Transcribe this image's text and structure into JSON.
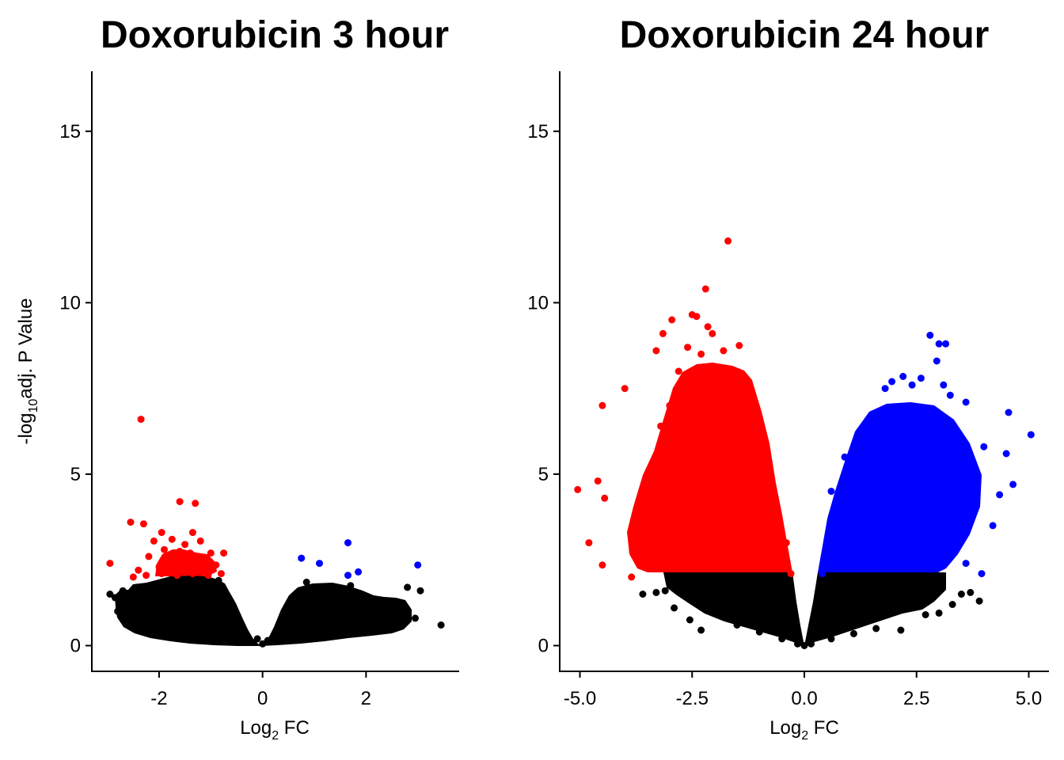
{
  "chart_data": [
    {
      "type": "scatter",
      "title": "Doxorubicin 3 hour",
      "xlabel": "Log2 FC",
      "xlabel_main": "Log",
      "xlabel_sub": "2",
      "xlabel_tail": " FC",
      "ylabel": "-log10adj. P Value",
      "ylabel_pre": "-log",
      "ylabel_sub": "10",
      "ylabel_tail": "adj. P Value",
      "xlim": [
        -3.3,
        3.8
      ],
      "ylim": [
        -0.75,
        16.75
      ],
      "x_ticks": [
        -2,
        0,
        2
      ],
      "x_tick_labels": [
        "-2",
        "0",
        "2"
      ],
      "y_ticks": [
        0,
        5,
        10,
        15
      ],
      "y_tick_labels": [
        "0",
        "5",
        "10",
        "15"
      ],
      "series": [
        {
          "color": "#ff0000",
          "points": [
            [
              -2.35,
              6.6
            ],
            [
              -1.6,
              4.2
            ],
            [
              -1.3,
              4.15
            ],
            [
              -2.55,
              3.6
            ],
            [
              -2.3,
              3.55
            ],
            [
              -2.95,
              2.4
            ],
            [
              -1.95,
              3.3
            ],
            [
              -1.35,
              3.3
            ],
            [
              -1.75,
              3.1
            ],
            [
              -2.1,
              3.05
            ],
            [
              -1.5,
              2.95
            ],
            [
              -1.2,
              3.05
            ],
            [
              -1.9,
              2.8
            ],
            [
              -1.6,
              2.75
            ],
            [
              -1.4,
              2.7
            ],
            [
              -2.2,
              2.6
            ],
            [
              -1.0,
              2.7
            ],
            [
              -0.75,
              2.7
            ],
            [
              -1.85,
              2.5
            ],
            [
              -1.55,
              2.45
            ],
            [
              -1.25,
              2.55
            ],
            [
              -2.4,
              2.2
            ],
            [
              -2.0,
              2.3
            ],
            [
              -1.7,
              2.2
            ],
            [
              -1.45,
              2.25
            ],
            [
              -1.1,
              2.3
            ],
            [
              -0.9,
              2.35
            ],
            [
              -2.5,
              2.0
            ],
            [
              -2.25,
              2.05
            ],
            [
              -1.95,
              2.1
            ],
            [
              -1.65,
              2.05
            ],
            [
              -1.35,
              2.1
            ],
            [
              -1.05,
              2.05
            ],
            [
              -0.8,
              2.1
            ]
          ]
        },
        {
          "color": "#0000ff",
          "points": [
            [
              0.75,
              2.55
            ],
            [
              1.1,
              2.4
            ],
            [
              1.65,
              3.0
            ],
            [
              3.0,
              2.35
            ],
            [
              1.85,
              2.15
            ],
            [
              1.65,
              2.05
            ]
          ]
        },
        {
          "color": "#000000",
          "points": [
            [
              3.45,
              0.6
            ],
            [
              3.05,
              1.6
            ],
            [
              2.95,
              0.8
            ],
            [
              2.75,
              0.9
            ],
            [
              2.65,
              1.1
            ],
            [
              2.8,
              1.7
            ],
            [
              2.45,
              0.6
            ],
            [
              1.7,
              1.75
            ],
            [
              0.85,
              1.85
            ],
            [
              -2.95,
              1.5
            ],
            [
              -2.85,
              1.4
            ],
            [
              -2.7,
              1.6
            ],
            [
              -2.6,
              1.15
            ],
            [
              -2.8,
              1.0
            ],
            [
              -2.55,
              0.7
            ],
            [
              -1.95,
              1.8
            ],
            [
              -0.85,
              1.9
            ],
            [
              -0.1,
              0.2
            ],
            [
              0.0,
              0.05
            ],
            [
              0.1,
              0.15
            ]
          ]
        }
      ]
    },
    {
      "type": "scatter",
      "title": "Doxorubicin 24 hour",
      "xlabel": "Log2 FC",
      "xlabel_main": "Log",
      "xlabel_sub": "2",
      "xlabel_tail": " FC",
      "xlim": [
        -5.45,
        5.45
      ],
      "ylim": [
        -0.75,
        16.75
      ],
      "x_ticks": [
        -5.0,
        -2.5,
        0.0,
        2.5,
        5.0
      ],
      "x_tick_labels": [
        "-5.0",
        "-2.5",
        "0.0",
        "2.5",
        "5.0"
      ],
      "y_ticks": [
        0,
        5,
        10,
        15
      ],
      "y_tick_labels": [
        "0",
        "5",
        "10",
        "15"
      ],
      "series": [
        {
          "color": "#ff0000",
          "points": [
            [
              -1.7,
              11.8
            ],
            [
              -2.2,
              10.4
            ],
            [
              -2.5,
              9.65
            ],
            [
              -2.4,
              9.6
            ],
            [
              -2.95,
              9.5
            ],
            [
              -3.15,
              9.1
            ],
            [
              -2.15,
              9.3
            ],
            [
              -2.05,
              9.1
            ],
            [
              -1.45,
              8.75
            ],
            [
              -1.8,
              8.6
            ],
            [
              -2.6,
              8.7
            ],
            [
              -2.3,
              8.5
            ],
            [
              -3.3,
              8.6
            ],
            [
              -4.0,
              7.5
            ],
            [
              -4.5,
              7.0
            ],
            [
              -2.8,
              8.0
            ],
            [
              -1.55,
              7.8
            ],
            [
              -5.05,
              4.55
            ],
            [
              -4.6,
              4.8
            ],
            [
              -4.45,
              4.3
            ],
            [
              -4.8,
              3.0
            ],
            [
              -4.5,
              2.35
            ],
            [
              -3.65,
              3.2
            ],
            [
              -3.85,
              2.0
            ],
            [
              -3.4,
              2.5
            ],
            [
              -3.0,
              7.0
            ],
            [
              -2.0,
              6.8
            ],
            [
              -1.2,
              6.0
            ],
            [
              -0.9,
              5.0
            ],
            [
              -0.6,
              4.0
            ],
            [
              -0.4,
              3.0
            ],
            [
              -0.3,
              2.1
            ],
            [
              -3.2,
              6.4
            ],
            [
              -2.4,
              6.2
            ],
            [
              -1.6,
              5.4
            ]
          ]
        },
        {
          "color": "#0000ff",
          "points": [
            [
              2.8,
              9.05
            ],
            [
              3.0,
              8.8
            ],
            [
              3.15,
              8.8
            ],
            [
              2.95,
              8.3
            ],
            [
              1.95,
              7.7
            ],
            [
              2.2,
              7.85
            ],
            [
              2.6,
              7.8
            ],
            [
              3.1,
              7.6
            ],
            [
              1.8,
              7.5
            ],
            [
              2.4,
              7.6
            ],
            [
              3.25,
              7.3
            ],
            [
              3.6,
              7.1
            ],
            [
              4.55,
              6.8
            ],
            [
              5.05,
              6.15
            ],
            [
              4.5,
              5.6
            ],
            [
              4.65,
              4.7
            ],
            [
              4.35,
              4.4
            ],
            [
              3.6,
              2.4
            ],
            [
              3.95,
              2.1
            ],
            [
              0.6,
              4.5
            ],
            [
              0.4,
              2.1
            ],
            [
              0.9,
              5.5
            ],
            [
              1.5,
              6.5
            ],
            [
              2.1,
              6.6
            ],
            [
              2.7,
              6.0
            ],
            [
              3.3,
              5.2
            ],
            [
              3.8,
              4.3
            ],
            [
              1.2,
              3.5
            ],
            [
              2.0,
              3.0
            ],
            [
              2.6,
              3.4
            ],
            [
              3.2,
              2.7
            ],
            [
              1.0,
              2.4
            ],
            [
              4.0,
              5.8
            ],
            [
              4.2,
              3.5
            ]
          ]
        },
        {
          "color": "#000000",
          "points": [
            [
              -3.6,
              1.5
            ],
            [
              -3.3,
              1.55
            ],
            [
              -2.9,
              1.1
            ],
            [
              -2.55,
              0.75
            ],
            [
              -2.3,
              0.45
            ],
            [
              -1.85,
              1.3
            ],
            [
              -3.1,
              1.6
            ],
            [
              -2.0,
              0.95
            ],
            [
              -1.5,
              0.6
            ],
            [
              -1.0,
              0.4
            ],
            [
              -0.5,
              0.2
            ],
            [
              -0.15,
              0.05
            ],
            [
              0.0,
              0.0
            ],
            [
              0.15,
              0.05
            ],
            [
              0.6,
              0.2
            ],
            [
              1.1,
              0.35
            ],
            [
              1.6,
              0.5
            ],
            [
              2.15,
              0.45
            ],
            [
              2.7,
              0.9
            ],
            [
              3.0,
              0.95
            ],
            [
              3.5,
              1.5
            ],
            [
              3.7,
              1.55
            ],
            [
              3.9,
              1.3
            ],
            [
              3.3,
              1.2
            ],
            [
              1.3,
              1.9
            ],
            [
              -1.3,
              1.9
            ]
          ]
        }
      ]
    }
  ]
}
